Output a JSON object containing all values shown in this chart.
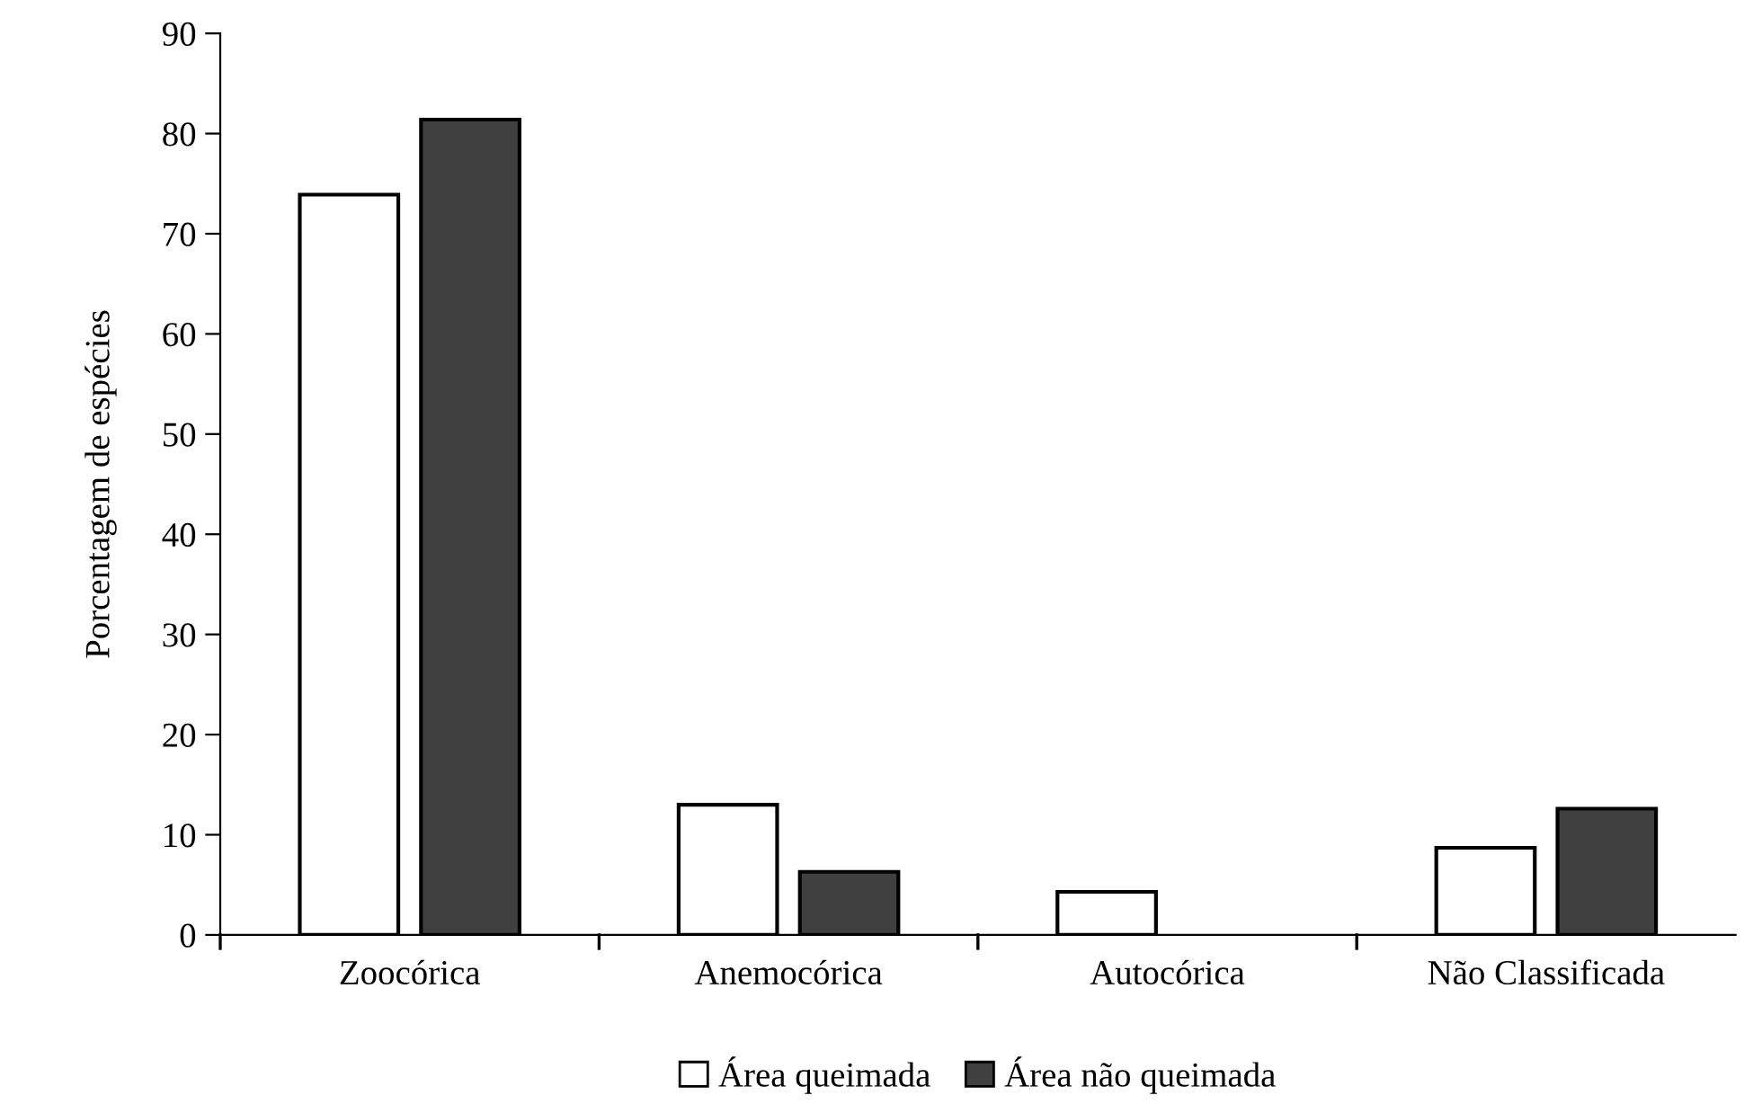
{
  "chart_data": {
    "type": "bar",
    "ylabel": "Porcentagem de espécies",
    "categories": [
      "Zoocórica",
      "Anemocórica",
      "Autocórica",
      "Não Classificada"
    ],
    "series": [
      {
        "name": "Área queimada",
        "color": "#ffffff",
        "values": [
          73.9,
          13.0,
          4.3,
          8.7
        ]
      },
      {
        "name": "Área não queimada",
        "color": "#404040",
        "values": [
          81.4,
          6.3,
          null,
          12.6
        ]
      }
    ],
    "ylim": [
      0,
      90
    ],
    "yticks": [
      0,
      10,
      20,
      30,
      40,
      50,
      60,
      70,
      80,
      90
    ],
    "grid": false,
    "legend": "bottom"
  }
}
